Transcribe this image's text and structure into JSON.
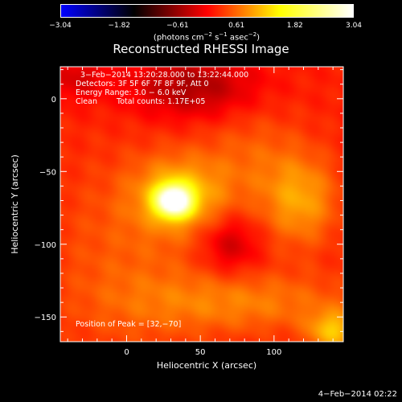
{
  "colorbar": {
    "tick_labels": [
      "−3.04",
      "−1.82",
      "−0.61",
      "0.61",
      "1.82",
      "3.04"
    ],
    "tick_values": [
      -3.04,
      -1.82,
      -0.61,
      0.61,
      1.82,
      3.04
    ],
    "units_prefix": "(photons cm",
    "units_exp1": "−2",
    "units_mid1": " s",
    "units_exp2": "−1",
    "units_mid2": " asec",
    "units_exp3": "−2",
    "units_suffix": ")",
    "range": [
      -3.04,
      3.04
    ],
    "colors": [
      "#0000ff",
      "#000000",
      "#ff0000",
      "#ffff00",
      "#ffffff"
    ]
  },
  "chart_data": {
    "type": "heatmap",
    "title": "Reconstructed RHESSI Image",
    "xlabel": "Heliocentric X (arcsec)",
    "ylabel": "Heliocentric Y (arcsec)",
    "xlim": [
      -45,
      147
    ],
    "ylim": [
      -167,
      22
    ],
    "x_ticks": [
      0,
      50,
      100
    ],
    "y_ticks": [
      0,
      -50,
      -100,
      -150
    ],
    "x_tick_labels": [
      "0",
      "50",
      "100"
    ],
    "y_tick_labels": [
      "0",
      "−50",
      "−100",
      "−150"
    ],
    "annotations": {
      "time_range": "3−Feb−2014 13:20:28.000 to 13:22:44.000",
      "detectors": "Detectors: 3F 5F 6F 7F 8F 9F, Att 0",
      "energy": "Energy Range: 3.0 − 6.0 keV",
      "clean": "Clean",
      "total_counts": "Total counts: 1.17E+05",
      "peak": "Position of Peak = [32,−70]"
    },
    "peak_position": [
      32,
      -70
    ],
    "sources": [
      {
        "x": 32,
        "y": -70,
        "sx": 8,
        "sy": 7,
        "amp": 3.04
      },
      {
        "x": 36,
        "y": -66,
        "sx": 22,
        "sy": 18,
        "amp": 0.9
      },
      {
        "x": 118,
        "y": -70,
        "sx": 18,
        "sy": 22,
        "amp": 0.75
      },
      {
        "x": 80,
        "y": -140,
        "sx": 55,
        "sy": 15,
        "amp": 0.55
      },
      {
        "x": 140,
        "y": -160,
        "sx": 12,
        "sy": 10,
        "amp": 0.9
      },
      {
        "x": 0,
        "y": -110,
        "sx": 40,
        "sy": 50,
        "amp": 0.35
      },
      {
        "x": 85,
        "y": -40,
        "sx": 25,
        "sy": 25,
        "amp": 0.35
      },
      {
        "x": 70,
        "y": -100,
        "sx": 14,
        "sy": 14,
        "amp": -0.55
      },
      {
        "x": 45,
        "y": 8,
        "sx": 30,
        "sy": 15,
        "amp": -0.7
      },
      {
        "x": -35,
        "y": 15,
        "sx": 15,
        "sy": 12,
        "amp": -0.4
      }
    ],
    "background": 0.18
  },
  "footer": {
    "date": "4−Feb−2014 02:22"
  }
}
